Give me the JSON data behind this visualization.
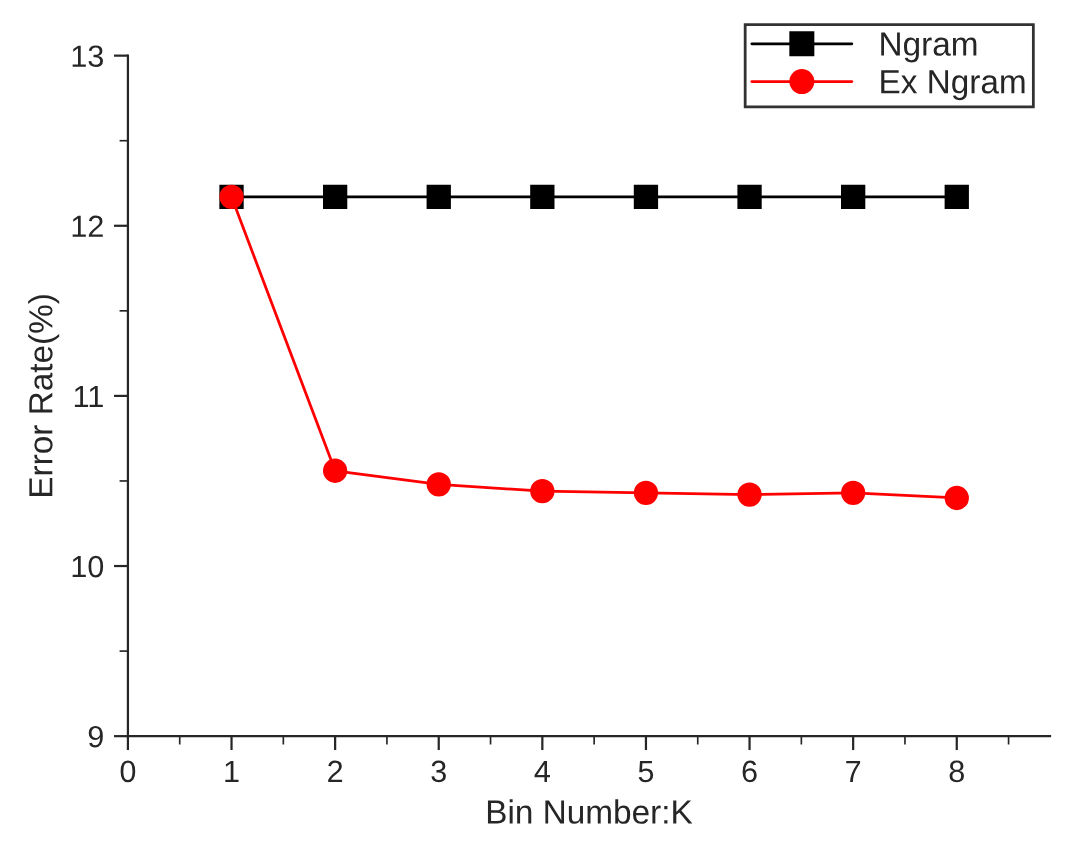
{
  "chart_data": {
    "type": "line",
    "xlabel": "Bin Number:K",
    "ylabel": "Error Rate(%)",
    "x": [
      1,
      2,
      3,
      4,
      5,
      6,
      7,
      8
    ],
    "series": [
      {
        "name": "Ngram",
        "color": "#000000",
        "marker": "square",
        "values": [
          12.17,
          12.17,
          12.17,
          12.17,
          12.17,
          12.17,
          12.17,
          12.17
        ]
      },
      {
        "name": "Ex Ngram",
        "color": "#ff0000",
        "marker": "circle",
        "values": [
          12.17,
          10.56,
          10.48,
          10.44,
          10.43,
          10.42,
          10.43,
          10.4
        ]
      }
    ],
    "xlim": [
      0,
      8.9
    ],
    "xticks": [
      0,
      1,
      2,
      3,
      4,
      5,
      6,
      7,
      8
    ],
    "ylim": [
      9,
      13
    ],
    "yticks": [
      9,
      10,
      11,
      12,
      13
    ],
    "grid": false,
    "legend": "top right",
    "line_style": "solid"
  }
}
